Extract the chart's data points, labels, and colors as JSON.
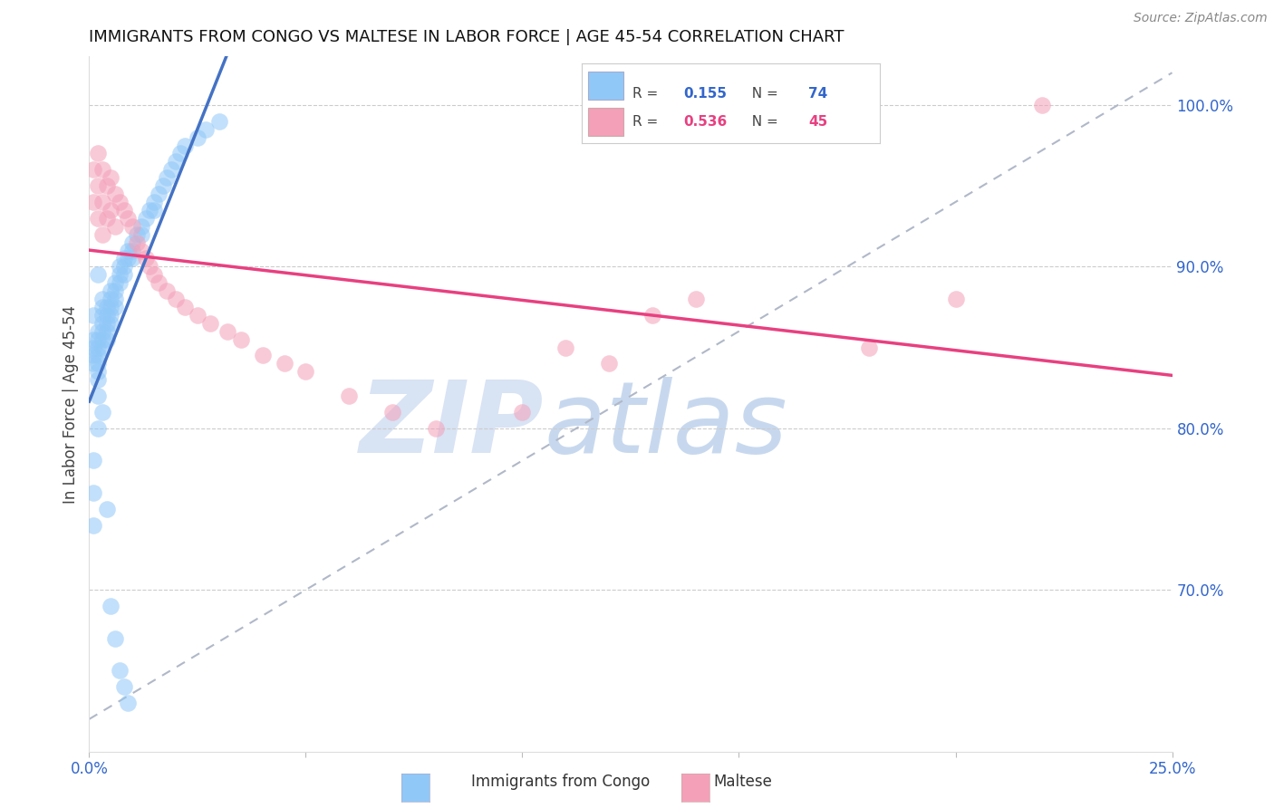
{
  "title": "IMMIGRANTS FROM CONGO VS MALTESE IN LABOR FORCE | AGE 45-54 CORRELATION CHART",
  "source": "Source: ZipAtlas.com",
  "ylabel": "In Labor Force | Age 45-54",
  "R_congo": 0.155,
  "N_congo": 74,
  "R_maltese": 0.536,
  "N_maltese": 45,
  "xlim": [
    0.0,
    0.25
  ],
  "ylim": [
    0.6,
    1.03
  ],
  "yticks_right": [
    0.7,
    0.8,
    0.9,
    1.0
  ],
  "ytick_right_labels": [
    "70.0%",
    "80.0%",
    "90.0%",
    "100.0%"
  ],
  "xtick_positions": [
    0.0,
    0.05,
    0.1,
    0.15,
    0.2,
    0.25
  ],
  "xtick_labels": [
    "0.0%",
    "",
    "",
    "",
    "",
    "25.0%"
  ],
  "color_congo": "#90C8F8",
  "color_maltese": "#F4A0B8",
  "line_color_congo": "#4472C4",
  "line_color_maltese": "#E84080",
  "line_color_dashed": "#B0B8C8",
  "watermark_zip": "ZIP",
  "watermark_atlas": "atlas",
  "watermark_color_zip": "#C8D8F0",
  "watermark_color_atlas": "#B0C8E8",
  "congo_x": [
    0.001,
    0.001,
    0.001,
    0.001,
    0.001,
    0.002,
    0.002,
    0.002,
    0.002,
    0.002,
    0.002,
    0.002,
    0.002,
    0.003,
    0.003,
    0.003,
    0.003,
    0.003,
    0.003,
    0.003,
    0.004,
    0.004,
    0.004,
    0.004,
    0.004,
    0.005,
    0.005,
    0.005,
    0.005,
    0.005,
    0.006,
    0.006,
    0.006,
    0.006,
    0.007,
    0.007,
    0.007,
    0.008,
    0.008,
    0.008,
    0.009,
    0.009,
    0.01,
    0.01,
    0.01,
    0.011,
    0.012,
    0.012,
    0.013,
    0.014,
    0.015,
    0.015,
    0.016,
    0.017,
    0.018,
    0.019,
    0.02,
    0.021,
    0.022,
    0.025,
    0.027,
    0.03,
    0.001,
    0.001,
    0.001,
    0.002,
    0.002,
    0.003,
    0.004,
    0.005,
    0.006,
    0.007,
    0.008,
    0.009
  ],
  "congo_y": [
    0.84,
    0.87,
    0.855,
    0.85,
    0.845,
    0.86,
    0.855,
    0.85,
    0.845,
    0.84,
    0.835,
    0.83,
    0.895,
    0.88,
    0.875,
    0.87,
    0.865,
    0.86,
    0.855,
    0.85,
    0.875,
    0.87,
    0.865,
    0.86,
    0.855,
    0.885,
    0.88,
    0.875,
    0.87,
    0.865,
    0.89,
    0.885,
    0.88,
    0.875,
    0.9,
    0.895,
    0.89,
    0.905,
    0.9,
    0.895,
    0.91,
    0.905,
    0.915,
    0.91,
    0.905,
    0.92,
    0.925,
    0.92,
    0.93,
    0.935,
    0.94,
    0.935,
    0.945,
    0.95,
    0.955,
    0.96,
    0.965,
    0.97,
    0.975,
    0.98,
    0.985,
    0.99,
    0.78,
    0.76,
    0.74,
    0.82,
    0.8,
    0.81,
    0.75,
    0.69,
    0.67,
    0.65,
    0.64,
    0.63
  ],
  "maltese_x": [
    0.001,
    0.001,
    0.002,
    0.002,
    0.002,
    0.003,
    0.003,
    0.003,
    0.004,
    0.004,
    0.005,
    0.005,
    0.006,
    0.006,
    0.007,
    0.008,
    0.009,
    0.01,
    0.011,
    0.012,
    0.013,
    0.014,
    0.015,
    0.016,
    0.018,
    0.02,
    0.022,
    0.025,
    0.028,
    0.032,
    0.035,
    0.04,
    0.045,
    0.05,
    0.06,
    0.07,
    0.08,
    0.1,
    0.11,
    0.12,
    0.13,
    0.14,
    0.18,
    0.2,
    0.22
  ],
  "maltese_y": [
    0.96,
    0.94,
    0.97,
    0.95,
    0.93,
    0.96,
    0.94,
    0.92,
    0.95,
    0.93,
    0.955,
    0.935,
    0.945,
    0.925,
    0.94,
    0.935,
    0.93,
    0.925,
    0.915,
    0.91,
    0.905,
    0.9,
    0.895,
    0.89,
    0.885,
    0.88,
    0.875,
    0.87,
    0.865,
    0.86,
    0.855,
    0.845,
    0.84,
    0.835,
    0.82,
    0.81,
    0.8,
    0.81,
    0.85,
    0.84,
    0.87,
    0.88,
    0.85,
    0.88,
    1.0
  ]
}
